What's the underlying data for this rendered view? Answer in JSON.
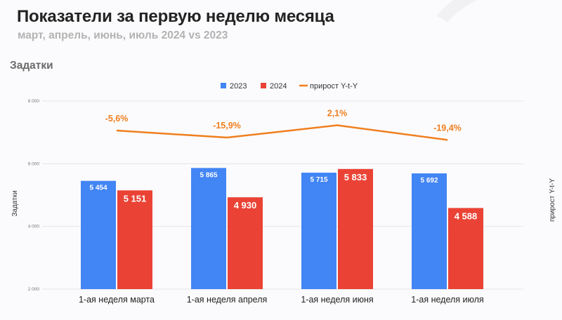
{
  "header": {
    "title": "Показатели за первую неделю месяца",
    "subtitle": "март, апрель, июнь, июль 2024 vs 2023",
    "section": "Задатки"
  },
  "chart_data": {
    "type": "bar",
    "categories": [
      "1-ая неделя марта",
      "1-ая неделя апреля",
      "1-ая неделя июня",
      "1-ая неделя июля"
    ],
    "series": [
      {
        "name": "2023",
        "type": "bar",
        "color": "#4285f4",
        "values": [
          5454,
          5865,
          5715,
          5692
        ],
        "labels": [
          "5 454",
          "5 865",
          "5 715",
          "5 692"
        ]
      },
      {
        "name": "2024",
        "type": "bar",
        "color": "#ea4335",
        "values": [
          5151,
          4930,
          5833,
          4588
        ],
        "labels": [
          "5 151",
          "4 930",
          "5 833",
          "4 588"
        ]
      },
      {
        "name": "прирост Y-t-Y",
        "type": "line",
        "axis": "right",
        "color": "#f07f1e",
        "values": [
          -5.6,
          -15.9,
          2.1,
          -19.4
        ],
        "labels": [
          "-5,6%",
          "-15,9%",
          "2,1%",
          "-19,4%"
        ]
      }
    ],
    "ylabel": "Задатки",
    "y2label": "прирост Y-t-Y",
    "ylim": [
      2000,
      8000
    ],
    "yticks": [
      2000,
      4000,
      6000,
      8000
    ],
    "ytick_labels": [
      "2 000",
      "4 000",
      "6 000",
      "8 000"
    ],
    "grid": true,
    "legend": "top-center"
  }
}
